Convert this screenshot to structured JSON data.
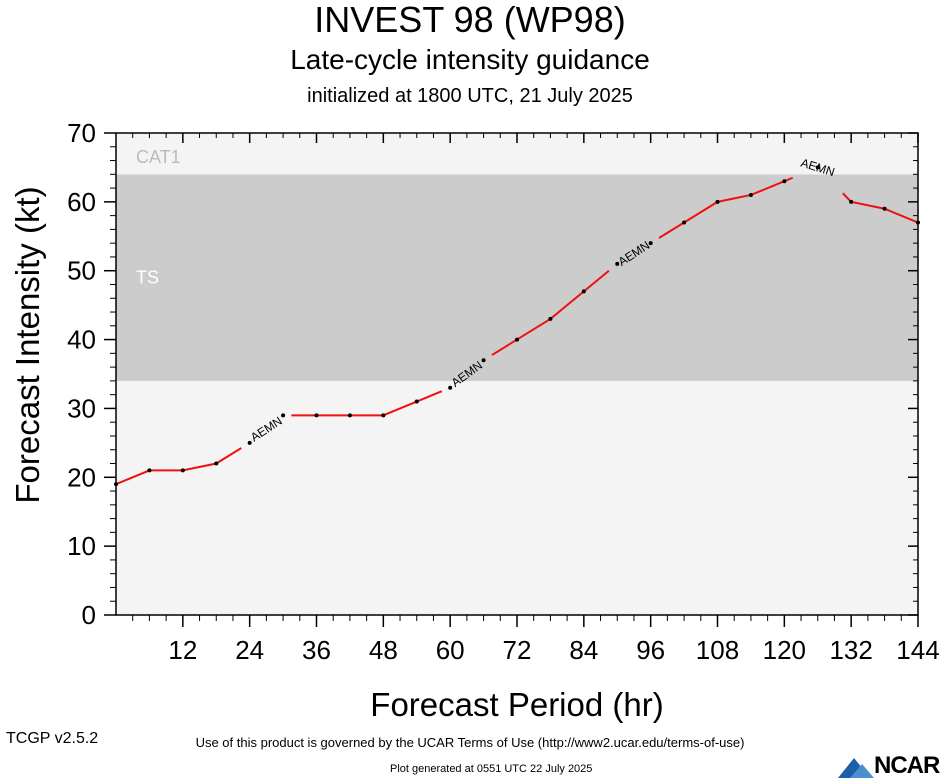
{
  "header": {
    "title": "INVEST 98 (WP98)",
    "subtitle": "Late-cycle intensity guidance",
    "init": "initialized at 1800 UTC, 21 July 2025"
  },
  "footer": {
    "terms": "Use of this product is governed by the UCAR Terms of Use (http://www2.ucar.edu/terms-of-use)",
    "version": "TCGP v2.5.2",
    "generated": "Plot generated at 0551 UTC   22 July 2025",
    "logo": "NCAR"
  },
  "chart_data": {
    "type": "line",
    "xlabel": "Forecast Period (hr)",
    "ylabel": "Forecast Intensity (kt)",
    "xlim": [
      0,
      144
    ],
    "ylim": [
      0,
      70
    ],
    "xticks": [
      12,
      24,
      36,
      48,
      60,
      72,
      84,
      96,
      108,
      120,
      132,
      144
    ],
    "yticks": [
      0,
      10,
      20,
      30,
      40,
      50,
      60,
      70
    ],
    "bands": [
      {
        "label": "TS",
        "from": 34,
        "to": 64,
        "color": "#cccccc",
        "label_color": "#ffffff"
      },
      {
        "label": "CAT1",
        "from": 64,
        "to": 70,
        "color": "#f4f4f4",
        "label_color": "#bbbbbb"
      }
    ],
    "background_color": "#f4f4f4",
    "series": [
      {
        "name": "AEMN",
        "color": "#ee1111",
        "x": [
          0,
          6,
          12,
          18,
          24,
          30,
          36,
          42,
          48,
          54,
          60,
          66,
          72,
          78,
          84,
          90,
          96,
          102,
          108,
          114,
          120,
          126,
          132,
          138,
          144
        ],
        "y": [
          19,
          21,
          21,
          22,
          25,
          29,
          29,
          29,
          29,
          31,
          33,
          37,
          40,
          43,
          47,
          51,
          54,
          57,
          60,
          61,
          63,
          65,
          60,
          59,
          57
        ],
        "label_at": [
          27,
          63,
          93,
          126
        ]
      }
    ],
    "grid": false,
    "legend": "none"
  }
}
